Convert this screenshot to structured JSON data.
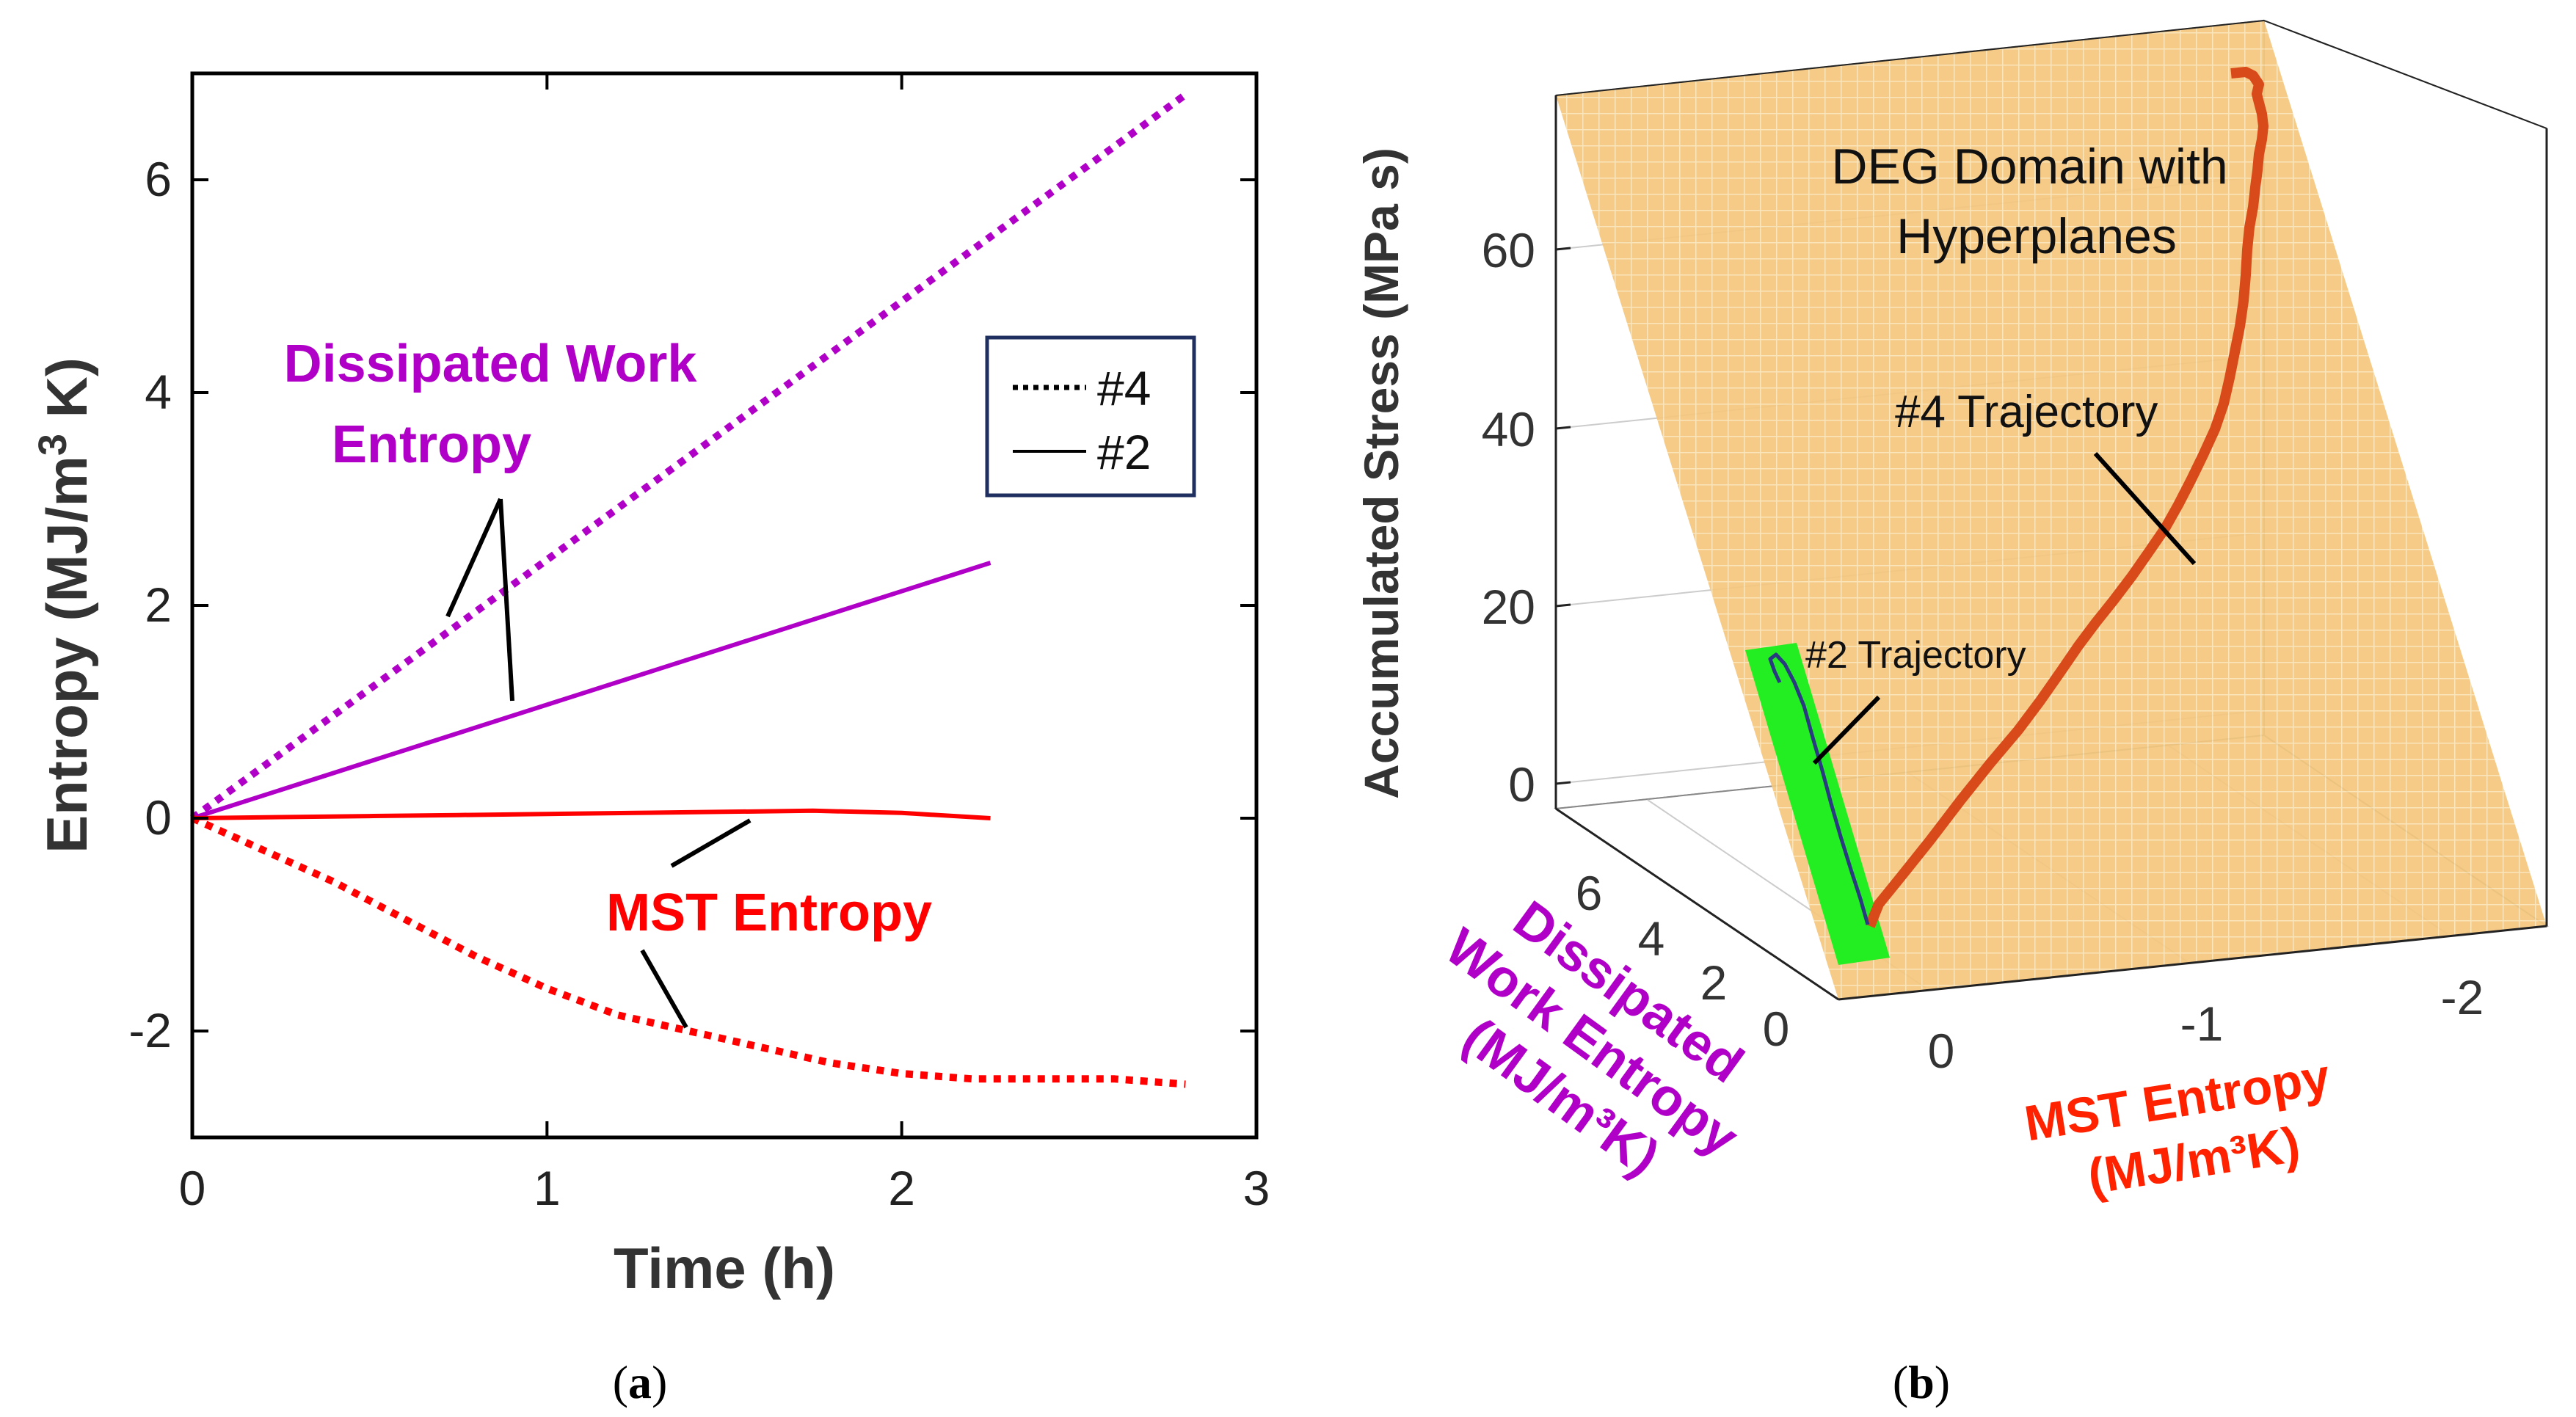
{
  "colors": {
    "purple": "#b000c8",
    "red": "#ff0000",
    "orange": "#d94a1a",
    "plane": "#f5c77e",
    "green": "#22ee22",
    "navy": "#1f2f5f",
    "axis": "#000000"
  },
  "panel_a": {
    "caption_open": "(",
    "caption_letter": "a",
    "caption_close": ")",
    "annotation_dissipated": [
      "Dissipated Work",
      "Entropy"
    ],
    "annotation_mst": "MST Entropy",
    "legend": [
      {
        "label": "#4",
        "style": "dotted"
      },
      {
        "label": "#2",
        "style": "solid"
      }
    ]
  },
  "panel_b": {
    "caption_open": "(",
    "caption_letter": "b",
    "caption_close": ")",
    "domain_label": [
      "DEG Domain with",
      "Hyperplanes"
    ],
    "traj4_label": "#4 Trajectory",
    "traj2_label": "#2 Trajectory",
    "z_axis_label": "Accumulated Stress (MPa s)",
    "y_axis_label": [
      "Dissipated",
      "Work Entropy",
      "(MJ/m³K)"
    ],
    "x_axis_label": [
      "MST Entropy",
      "(MJ/m³K)"
    ],
    "z_ticks": [
      "0",
      "20",
      "40",
      "60"
    ],
    "y_ticks": [
      "0",
      "2",
      "4",
      "6"
    ],
    "x_ticks": [
      "0",
      "-1",
      "-2"
    ]
  },
  "chart_data": [
    {
      "type": "line",
      "title": "",
      "xlabel": "Time (h)",
      "ylabel_parts": [
        "Entropy (MJ/m",
        "3",
        " K)"
      ],
      "xlim": [
        0,
        3
      ],
      "ylim": [
        -3,
        7
      ],
      "xticks": [
        0,
        1,
        2,
        3
      ],
      "yticks": [
        -2,
        0,
        2,
        4,
        6
      ],
      "xtick_labels": [
        "0",
        "1",
        "2",
        "3"
      ],
      "ytick_labels": [
        "-2",
        "0",
        "2",
        "4",
        "6"
      ],
      "legend_position": "top-right",
      "series": [
        {
          "name": "#4 Dissipated Work Entropy",
          "specimen": "#4",
          "style": "dotted",
          "color": "#b000c8",
          "x": [
            0,
            2.8
          ],
          "y": [
            0,
            6.8
          ]
        },
        {
          "name": "#2 Dissipated Work Entropy",
          "specimen": "#2",
          "style": "solid",
          "color": "#b000c8",
          "x": [
            0,
            2.25
          ],
          "y": [
            0,
            2.4
          ]
        },
        {
          "name": "#2 MST Entropy",
          "specimen": "#2",
          "style": "solid",
          "color": "#ff0000",
          "x": [
            0,
            0.25,
            0.5,
            0.75,
            1.0,
            1.25,
            1.5,
            1.75,
            2.0,
            2.25
          ],
          "y": [
            0,
            0.01,
            0.02,
            0.03,
            0.04,
            0.05,
            0.06,
            0.07,
            0.05,
            0.0
          ]
        },
        {
          "name": "#4 MST Entropy",
          "specimen": "#4",
          "style": "dotted",
          "color": "#ff0000",
          "x": [
            0,
            0.2,
            0.4,
            0.6,
            0.8,
            1.0,
            1.2,
            1.4,
            1.6,
            1.8,
            2.0,
            2.2,
            2.4,
            2.6,
            2.8
          ],
          "y": [
            0,
            -0.3,
            -0.6,
            -0.95,
            -1.3,
            -1.6,
            -1.85,
            -2.0,
            -2.15,
            -2.3,
            -2.4,
            -2.45,
            -2.45,
            -2.45,
            -2.5
          ]
        }
      ]
    },
    {
      "type": "3d-line",
      "title": "",
      "xlabel": "MST Entropy (MJ/m³K)",
      "ylabel": "Dissipated Work Entropy (MJ/m³K)",
      "zlabel": "Accumulated Stress (MPa s)",
      "xlim": [
        0,
        -2.5
      ],
      "ylim": [
        0,
        7
      ],
      "zlim": [
        0,
        75
      ],
      "series": [
        {
          "name": "#4 Trajectory",
          "color": "#d94a1a",
          "x": [
            0,
            -0.3,
            -0.6,
            -0.95,
            -1.3,
            -1.6,
            -1.85,
            -2.0,
            -2.15,
            -2.3,
            -2.4,
            -2.45,
            -2.5
          ],
          "y": [
            0,
            0.5,
            1.0,
            1.6,
            2.2,
            2.8,
            3.4,
            3.9,
            4.5,
            5.1,
            5.7,
            6.2,
            6.8
          ],
          "z": [
            0,
            5,
            10,
            16,
            22,
            28,
            34,
            40,
            46,
            52,
            58,
            64,
            70
          ]
        },
        {
          "name": "#2 Trajectory",
          "color": "#1f2f5f",
          "x": [
            0,
            0,
            0.02,
            0.04,
            0.06,
            0.07,
            0.05,
            0.0
          ],
          "y": [
            0,
            0.35,
            0.7,
            1.05,
            1.4,
            1.75,
            2.1,
            2.4
          ],
          "z": [
            0,
            2,
            4,
            6,
            8,
            10,
            12,
            14
          ]
        }
      ]
    }
  ]
}
